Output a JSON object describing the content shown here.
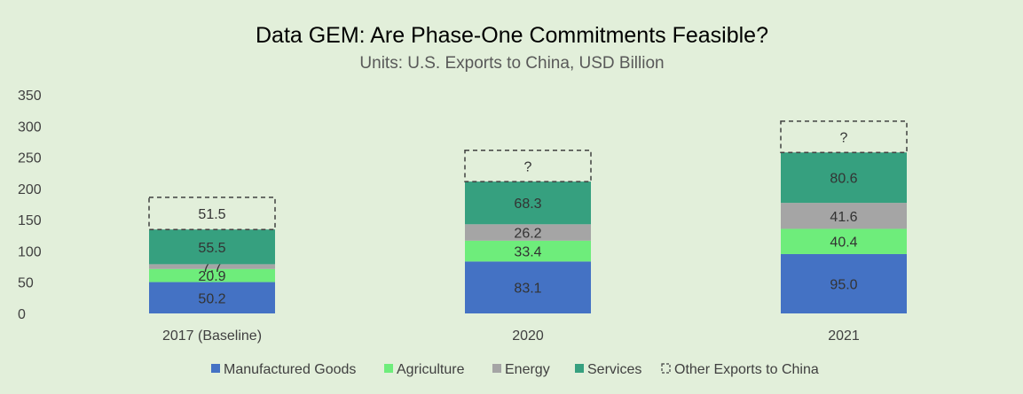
{
  "chart_data": {
    "type": "bar",
    "stacked": true,
    "title": "Data GEM: Are Phase-One Commitments Feasible?",
    "subtitle": "Units: U.S. Exports to China, USD Billion",
    "categories": [
      "2017 (Baseline)",
      "2020",
      "2021"
    ],
    "ylim": [
      0,
      350
    ],
    "yticks": [
      0,
      50,
      100,
      150,
      200,
      250,
      300,
      350
    ],
    "grid": false,
    "legend_position": "bottom",
    "series": [
      {
        "name": "Manufactured Goods",
        "color": "#4472c4",
        "values": [
          50.2,
          83.1,
          95.0
        ],
        "labels": [
          "50.2",
          "83.1",
          "95.0"
        ]
      },
      {
        "name": "Agriculture",
        "color": "#6eed7b",
        "values": [
          20.9,
          33.4,
          40.4
        ],
        "labels": [
          "20.9",
          "33.4",
          "40.4"
        ]
      },
      {
        "name": "Energy",
        "color": "#a5a5a5",
        "values": [
          7.7,
          26.2,
          41.6
        ],
        "labels": [
          "7.7",
          "26.2",
          "41.6"
        ]
      },
      {
        "name": "Services",
        "color": "#36a07f",
        "values": [
          55.5,
          68.3,
          80.6
        ],
        "labels": [
          "55.5",
          "68.3",
          "80.6"
        ]
      },
      {
        "name": "Other Exports to China",
        "dashed": true,
        "values": [
          51.5,
          50,
          50
        ],
        "labels": [
          "51.5",
          "?",
          "?"
        ]
      }
    ]
  }
}
